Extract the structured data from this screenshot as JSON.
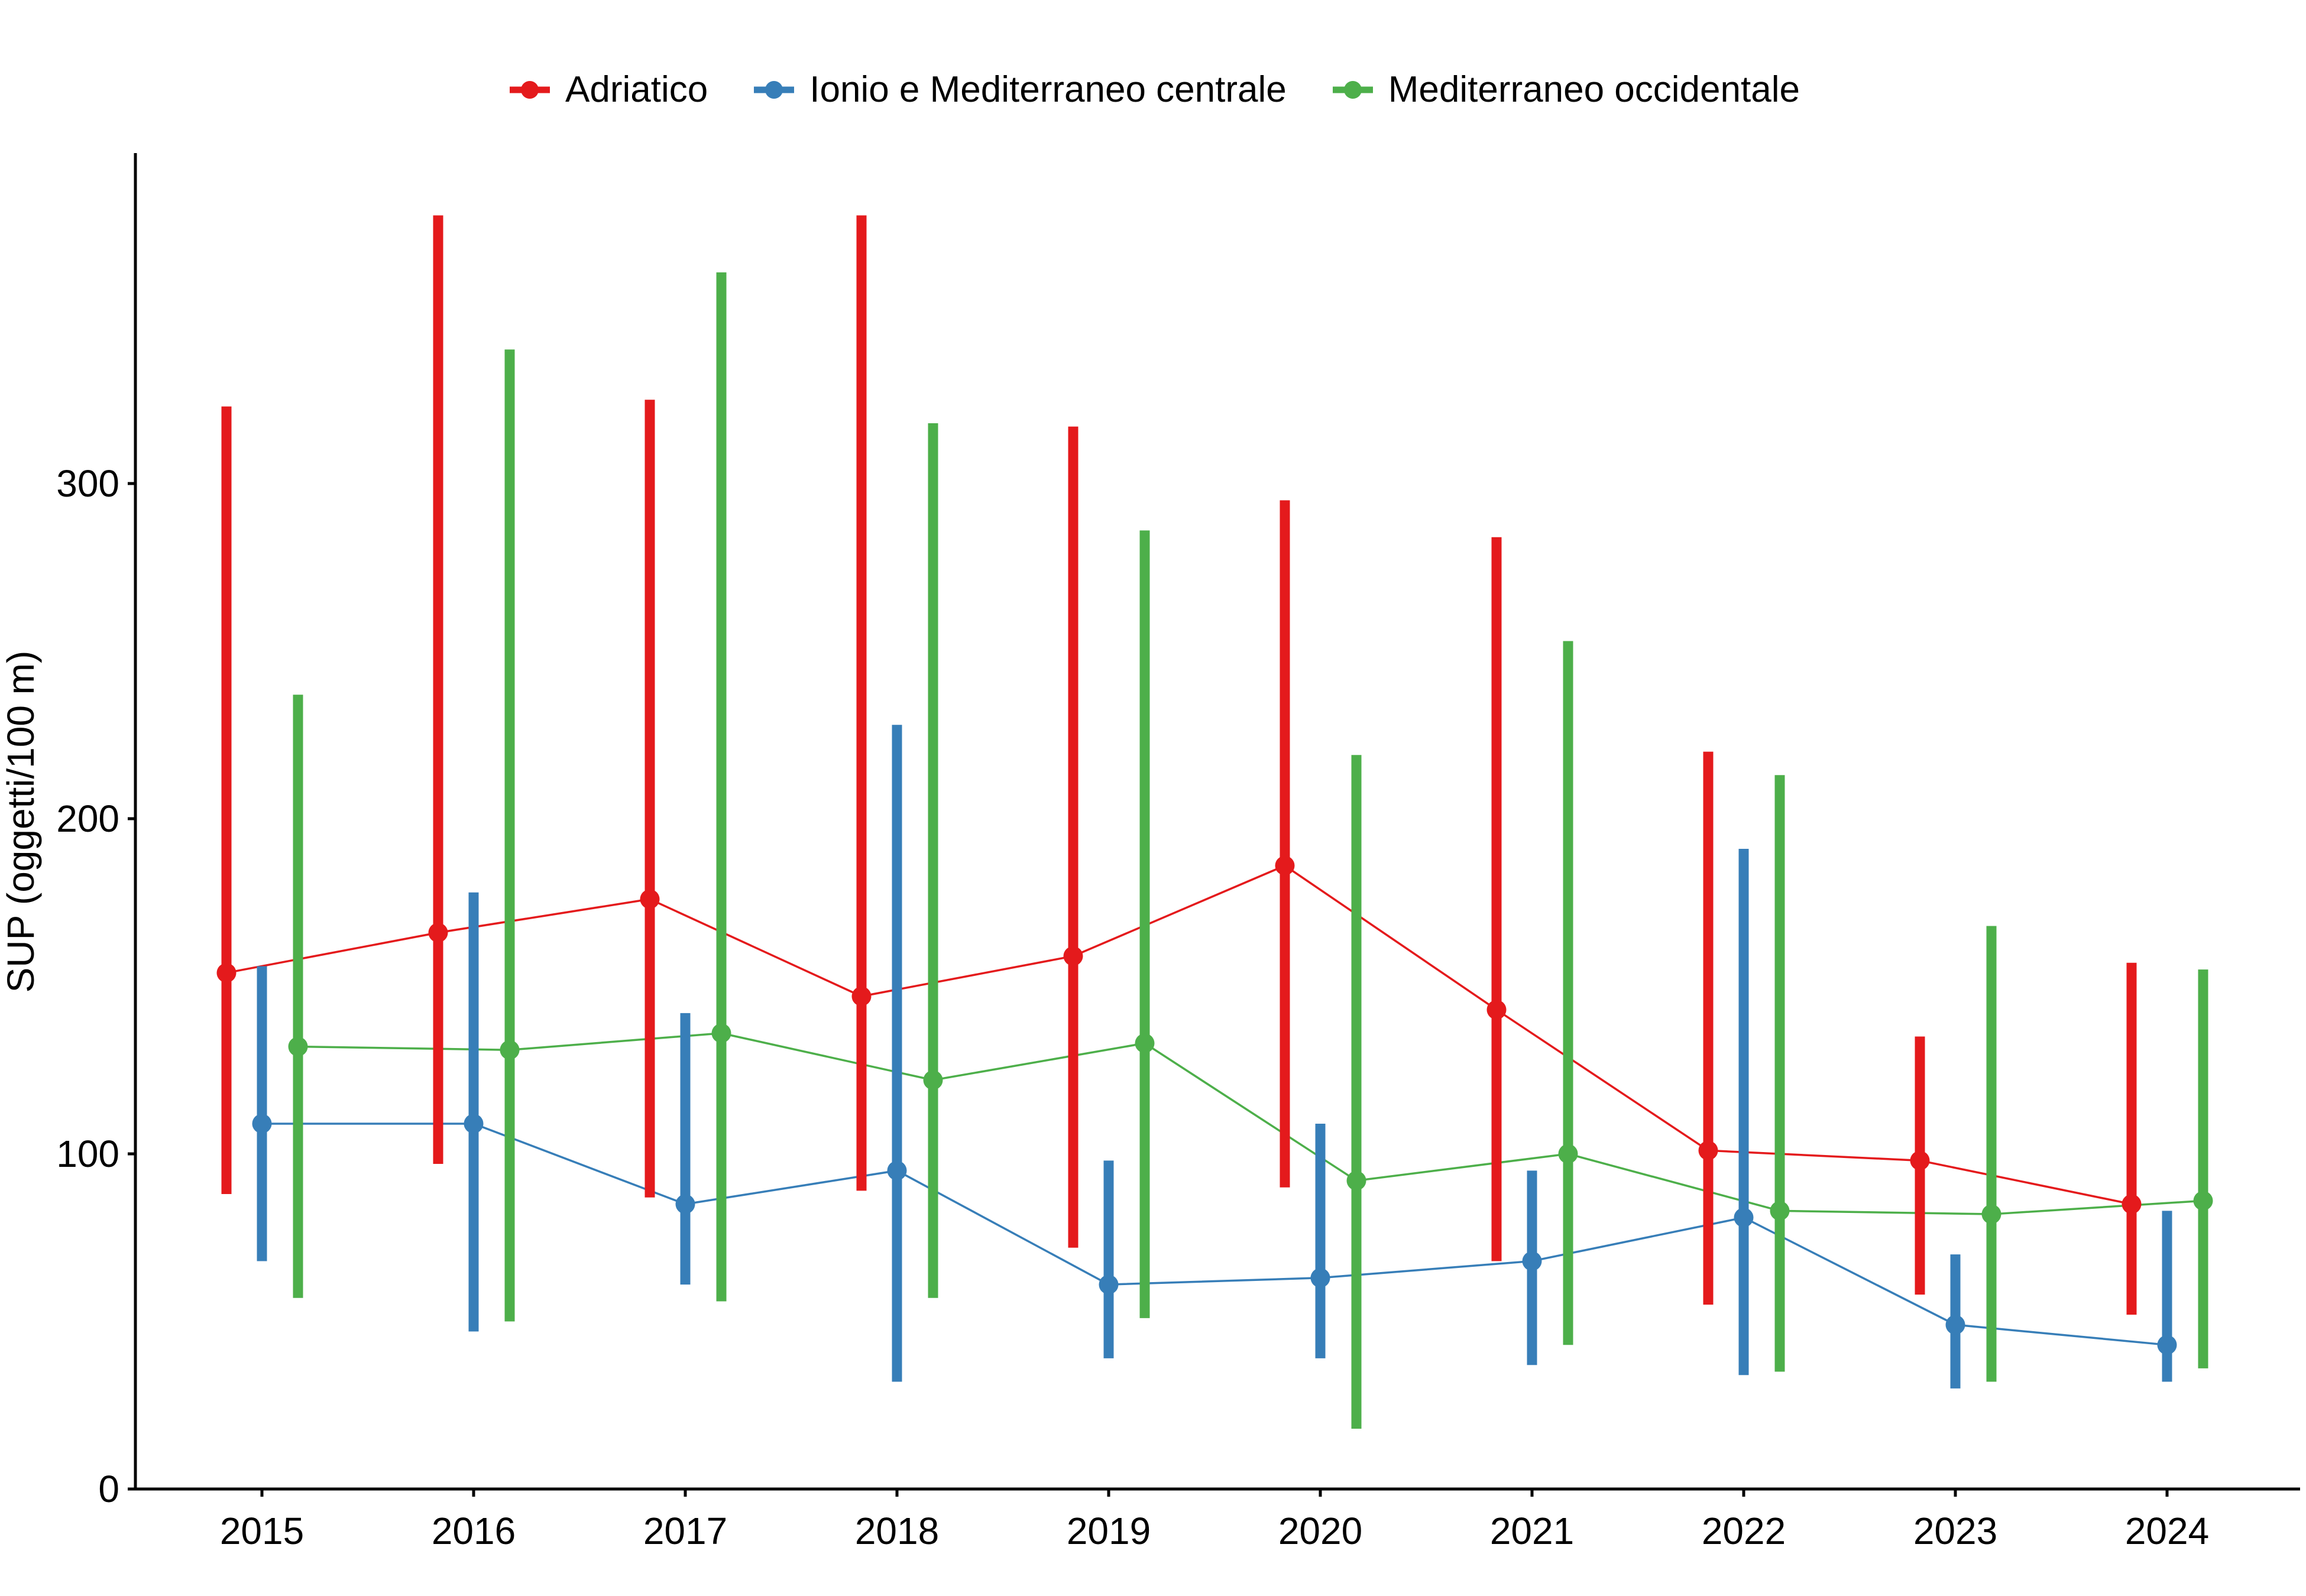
{
  "figure": {
    "background": "#ffffff",
    "axis_color": "#000000",
    "text_color": "#000000"
  },
  "chart_data": {
    "type": "pointrange-line",
    "title": "",
    "xlabel": "",
    "ylabel": "SUP (oggetti/100 m)",
    "categories": [
      "2015",
      "2016",
      "2017",
      "2018",
      "2019",
      "2020",
      "2021",
      "2022",
      "2023",
      "2024"
    ],
    "yticks": [
      0,
      100,
      200,
      300
    ],
    "ylim": [
      0,
      398
    ],
    "grid": "off",
    "legend_position": "top-center",
    "series": [
      {
        "name": "Adriatico",
        "color": "#e41a1c",
        "values": [
          154,
          166,
          176,
          147,
          159,
          186,
          143,
          101,
          98,
          85
        ],
        "ymin": [
          88,
          97,
          87,
          89,
          72,
          90,
          68,
          55,
          58,
          52
        ],
        "ymax": [
          323,
          380,
          325,
          380,
          317,
          295,
          284,
          220,
          135,
          157
        ]
      },
      {
        "name": "Ionio e Mediterraneo centrale",
        "color": "#377eb8",
        "values": [
          109,
          109,
          85,
          95,
          61,
          63,
          68,
          81,
          49,
          43
        ],
        "ymin": [
          68,
          47,
          61,
          32,
          39,
          39,
          37,
          34,
          30,
          32
        ],
        "ymax": [
          156,
          178,
          142,
          228,
          98,
          109,
          95,
          191,
          70,
          83
        ]
      },
      {
        "name": "Mediterraneo occidentale",
        "color": "#4daf4a",
        "values": [
          132,
          131,
          136,
          122,
          133,
          92,
          100,
          83,
          82,
          86
        ],
        "ymin": [
          57,
          50,
          56,
          57,
          51,
          18,
          43,
          35,
          32,
          36
        ],
        "ymax": [
          237,
          340,
          363,
          318,
          286,
          219,
          253,
          213,
          168,
          155
        ]
      }
    ]
  }
}
